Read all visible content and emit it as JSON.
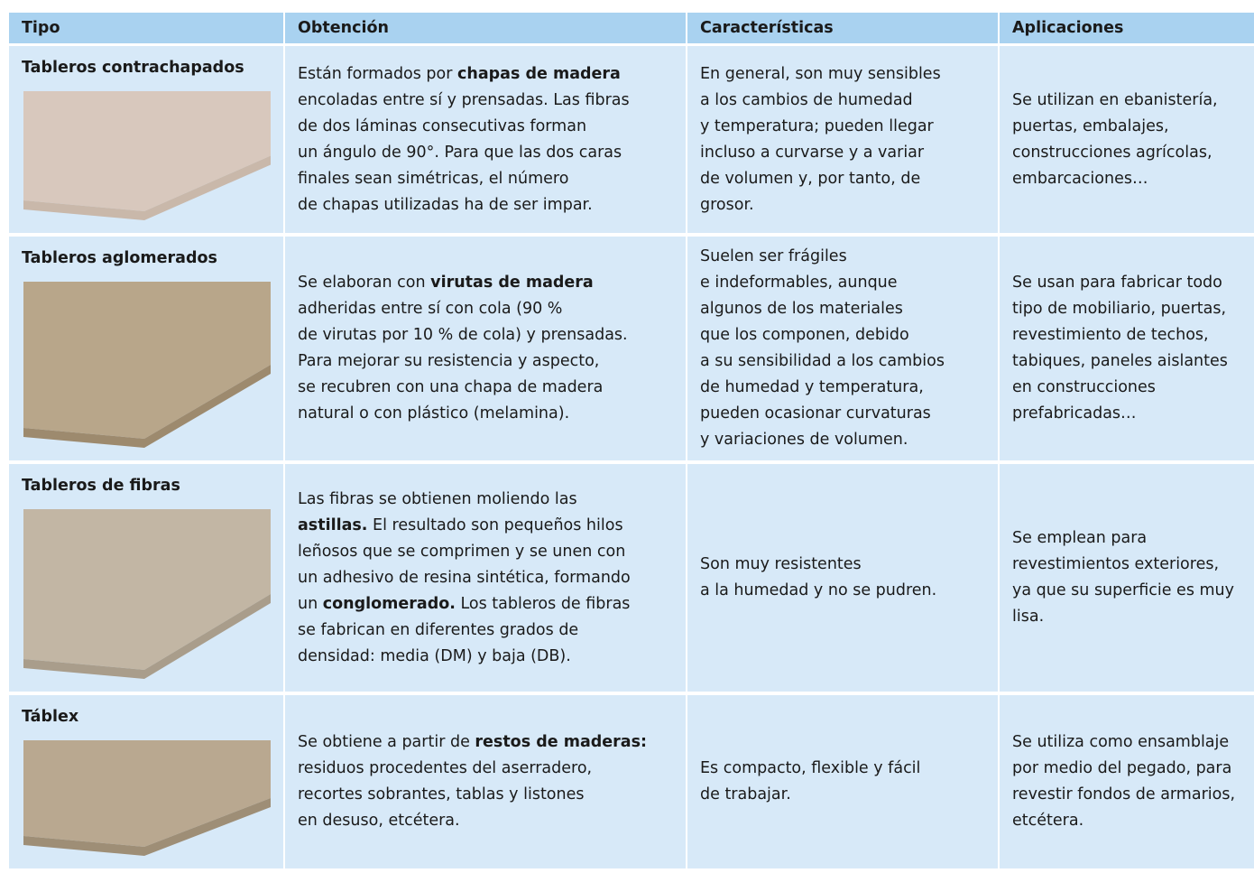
{
  "table": {
    "header": [
      "Tipo",
      "Obtención",
      "Características",
      "Aplicaciones"
    ],
    "rows": [
      {
        "tipo": "Tableros contrachapados",
        "cells": [
          [
            [
              "Están formados por ",
              {
                "bold": "chapas de madera"
              }
            ],
            "encoladas entre sí y prensadas. Las fibras",
            "de dos láminas consecutivas forman",
            "un ángulo de 90°. Para que las dos caras",
            "finales sean simétricas, el número",
            "de chapas utilizadas ha de ser impar."
          ],
          [
            "En general, son muy sensibles",
            "a los cambios de humedad",
            "y temperatura; pueden llegar",
            "incluso a curvarse y a variar",
            "de volumen y, por tanto, de",
            "grosor."
          ],
          [
            "Se utilizan en ebanistería,",
            "puertas, embalajes,",
            "construcciones agrícolas,",
            "embarcaciones…"
          ]
        ]
      },
      {
        "tipo": "Tableros aglomerados",
        "cells": [
          [
            [
              "Se elaboran con ",
              {
                "bold": "virutas de madera"
              }
            ],
            "adheridas entre sí con cola (90 %",
            "de virutas por 10 % de cola) y prensadas.",
            "Para mejorar su resistencia y aspecto,",
            "se recubren con una chapa de madera",
            "natural o con plástico (melamina)."
          ],
          [
            "Suelen ser frágiles",
            "e indeformables, aunque",
            "algunos de los materiales",
            "que los componen, debido",
            "a su sensibilidad a los cambios",
            "de humedad y temperatura,",
            "pueden ocasionar curvaturas",
            "y variaciones de volumen."
          ],
          [
            "Se usan para fabricar todo",
            "tipo de mobiliario, puertas,",
            "revestimiento de techos,",
            "tabiques, paneles aislantes",
            "en construcciones",
            "prefabricadas…"
          ]
        ]
      },
      {
        "tipo": "Tableros de fibras",
        "cells": [
          [
            "Las fibras se obtienen moliendo las",
            [
              {
                "bold": "astillas."
              },
              " El resultado son pequeños hilos"
            ],
            "leñosos que se comprimen y se unen con",
            "un adhesivo de resina sintética, formando",
            [
              "un ",
              {
                "bold": "conglomerado."
              },
              " Los tableros de fibras"
            ],
            "se fabrican en diferentes grados de",
            "densidad: media (DM) y baja (DB)."
          ],
          [
            "Son muy resistentes",
            "a la humedad y no se pudren."
          ],
          [
            "Se emplean para",
            "revestimientos exteriores,",
            "ya que su superficie es muy",
            "lisa."
          ]
        ]
      },
      {
        "tipo": "Táblex",
        "cells": [
          [
            [
              "Se obtiene a partir de ",
              {
                "bold": "restos de maderas:"
              }
            ],
            "residuos procedentes del aserradero,",
            "recortes sobrantes, tablas y listones",
            "en desuso, etcétera."
          ],
          [
            "Es compacto, flexible y fácil",
            "de trabajar."
          ],
          [
            "Se utiliza como ensamblaje",
            "por medio del pegado, para",
            "revestir fondos de armarios,",
            "etcétera."
          ]
        ]
      }
    ]
  }
}
